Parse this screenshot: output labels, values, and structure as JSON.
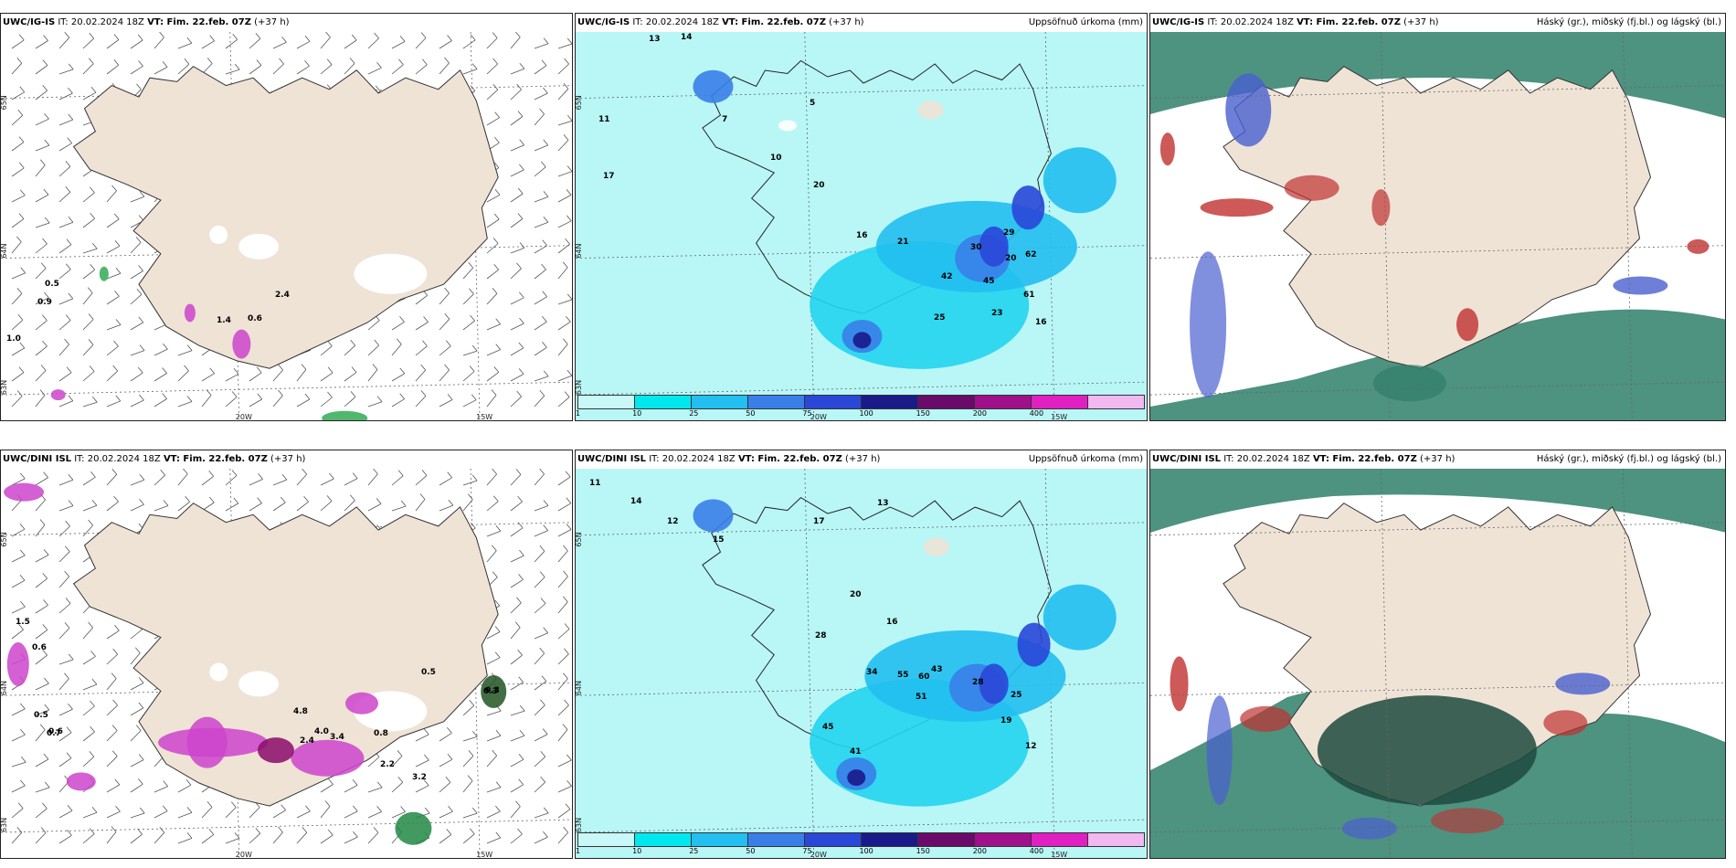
{
  "panels": [
    {
      "model": "UWC/IG-IS",
      "it_label": "IT: 20.02.2024 18Z",
      "vt_label": "VT: Fim. 22.feb. 07Z",
      "lead": "(+37 h)",
      "right_title": ""
    },
    {
      "model": "UWC/IG-IS",
      "it_label": "IT: 20.02.2024 18Z",
      "vt_label": "VT: Fim. 22.feb. 07Z",
      "lead": "(+37 h)",
      "right_title": "Uppsöfnuð úrkoma (mm)"
    },
    {
      "model": "UWC/IG-IS",
      "it_label": "IT: 20.02.2024 18Z",
      "vt_label": "VT: Fim. 22.feb. 07Z",
      "lead": "(+37 h)",
      "right_title": "Háský (gr.), miðský (fj.bl.) og lágský (bl.)"
    },
    {
      "model": "UWC/DINI ISL",
      "it_label": "IT: 20.02.2024 18Z",
      "vt_label": "VT: Fim. 22.feb. 07Z",
      "lead": "(+37 h)",
      "right_title": ""
    },
    {
      "model": "UWC/DINI ISL",
      "it_label": "IT: 20.02.2024 18Z",
      "vt_label": "VT: Fim. 22.feb. 07Z",
      "lead": "(+37 h)",
      "right_title": "Uppsöfnuð úrkoma (mm)"
    },
    {
      "model": "UWC/DINI ISL",
      "it_label": "IT: 20.02.2024 18Z",
      "vt_label": "VT: Fim. 22.feb. 07Z",
      "lead": "(+37 h)",
      "right_title": "Háský (gr.), miðský (fj.bl.) og lágský (bl.)"
    }
  ],
  "lat_labels": [
    "65N",
    "64N",
    "63N"
  ],
  "lon_labels": [
    "20W",
    "15W"
  ],
  "colorbar": {
    "ticks": [
      "1",
      "10",
      "25",
      "50",
      "75",
      "100",
      "150",
      "200",
      "400"
    ],
    "colors": [
      "#c8f8f8",
      "#00e8ee",
      "#22bff0",
      "#3a7fe8",
      "#2a47d8",
      "#1a1a8a",
      "#6a0a6a",
      "#a0108a",
      "#e020c0",
      "#f2b8f0"
    ]
  },
  "colors": {
    "land": "#efe3d6",
    "sea_precip": "#b9f6f6",
    "wind_sea": "#ffffff",
    "cloud_low": "#2f7f6a",
    "cloud_mid": "#4a5fd0",
    "cloud_high": "#c03030"
  },
  "annotations": {
    "top_wind": [
      "0.5",
      "0.9",
      "1.0",
      "0.6",
      "1.4",
      "2.4"
    ],
    "bottom_wind": [
      "0.5",
      "0.6",
      "0.3",
      "0.5",
      "0.7",
      "0.8",
      "2.4",
      "4.0",
      "3.4",
      "2.2",
      "3.2",
      "1.5",
      "0.6",
      "0.3",
      "4.8"
    ],
    "top_precip": [
      "13",
      "14",
      "11",
      "17",
      "7",
      "5",
      "10",
      "20",
      "21",
      "16",
      "42",
      "29",
      "62",
      "30",
      "45",
      "61",
      "16",
      "23",
      "25",
      "20"
    ],
    "bottom_precip": [
      "11",
      "14",
      "12",
      "15",
      "17",
      "13",
      "20",
      "16",
      "28",
      "34",
      "45",
      "60",
      "55",
      "51",
      "43",
      "28",
      "25",
      "41",
      "19",
      "12"
    ]
  }
}
